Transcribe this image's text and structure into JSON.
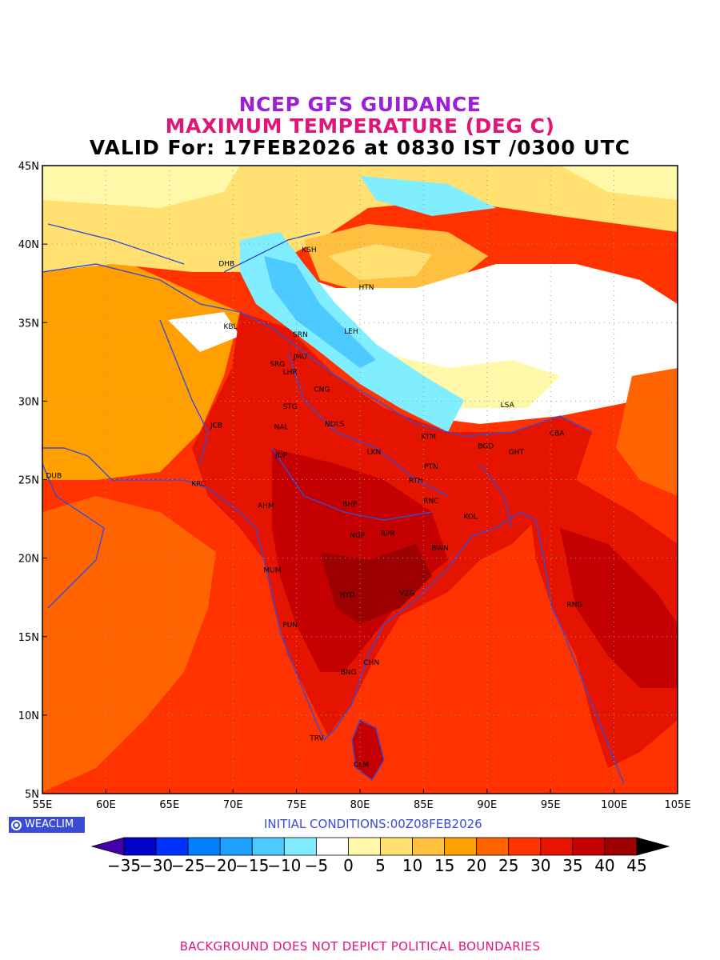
{
  "titles": {
    "line1": "NCEP GFS GUIDANCE",
    "line2": "MAXIMUM TEMPERATURE (DEG C)",
    "line3": "VALID For: 17FEB2026 at 0830 IST /0300 UTC"
  },
  "colors": {
    "line1": "#9b1fd6",
    "line2": "#e0157a",
    "border": "#3a4bd8",
    "logo_bg": "#3a4bd8",
    "init": "#3a4bd8",
    "footer": "#e0157a"
  },
  "map": {
    "lon_range": [
      55,
      105
    ],
    "lat_range": [
      5,
      45
    ],
    "lon_ticks": [
      "55E",
      "60E",
      "65E",
      "70E",
      "75E",
      "80E",
      "85E",
      "90E",
      "95E",
      "100E",
      "105E"
    ],
    "lat_ticks": [
      "5N",
      "10N",
      "15N",
      "20N",
      "25N",
      "30N",
      "35N",
      "40N",
      "45N"
    ],
    "grid": true
  },
  "cities": [
    {
      "label": "KSH",
      "lon": 76.0,
      "lat": 39.5
    },
    {
      "label": "DHB",
      "lon": 69.5,
      "lat": 38.6
    },
    {
      "label": "HTN",
      "lon": 80.5,
      "lat": 37.1
    },
    {
      "label": "KBL",
      "lon": 69.8,
      "lat": 34.6
    },
    {
      "label": "SRN",
      "lon": 75.3,
      "lat": 34.1
    },
    {
      "label": "LEH",
      "lon": 79.3,
      "lat": 34.3
    },
    {
      "label": "JMU",
      "lon": 75.3,
      "lat": 32.7
    },
    {
      "label": "SRG",
      "lon": 73.5,
      "lat": 32.2
    },
    {
      "label": "LHR",
      "lon": 74.5,
      "lat": 31.7
    },
    {
      "label": "CNG",
      "lon": 77.0,
      "lat": 30.6
    },
    {
      "label": "LSA",
      "lon": 91.6,
      "lat": 29.6
    },
    {
      "label": "STG",
      "lon": 74.5,
      "lat": 29.5
    },
    {
      "label": "JCB",
      "lon": 68.7,
      "lat": 28.3
    },
    {
      "label": "NAL",
      "lon": 73.8,
      "lat": 28.2
    },
    {
      "label": "NDLS",
      "lon": 78.0,
      "lat": 28.4
    },
    {
      "label": "KTM",
      "lon": 85.4,
      "lat": 27.6
    },
    {
      "label": "CBA",
      "lon": 95.5,
      "lat": 27.8
    },
    {
      "label": "BGD",
      "lon": 89.9,
      "lat": 27.0
    },
    {
      "label": "LKN",
      "lon": 81.1,
      "lat": 26.6
    },
    {
      "label": "GHT",
      "lon": 92.3,
      "lat": 26.6
    },
    {
      "label": "JDP",
      "lon": 73.8,
      "lat": 26.4
    },
    {
      "label": "DUB",
      "lon": 55.9,
      "lat": 25.1
    },
    {
      "label": "PTN",
      "lon": 85.6,
      "lat": 25.7
    },
    {
      "label": "KRC",
      "lon": 67.3,
      "lat": 24.6
    },
    {
      "label": "RTH",
      "lon": 84.4,
      "lat": 24.8
    },
    {
      "label": "RNC",
      "lon": 85.6,
      "lat": 23.5
    },
    {
      "label": "BHP",
      "lon": 79.2,
      "lat": 23.3
    },
    {
      "label": "AHM",
      "lon": 72.6,
      "lat": 23.2
    },
    {
      "label": "KOL",
      "lon": 88.7,
      "lat": 22.5
    },
    {
      "label": "NGP",
      "lon": 79.8,
      "lat": 21.3
    },
    {
      "label": "RPR",
      "lon": 82.2,
      "lat": 21.4
    },
    {
      "label": "BWN",
      "lon": 86.3,
      "lat": 20.5
    },
    {
      "label": "MUM",
      "lon": 73.1,
      "lat": 19.1
    },
    {
      "label": "HYD",
      "lon": 79.0,
      "lat": 17.5
    },
    {
      "label": "VZG",
      "lon": 83.7,
      "lat": 17.6
    },
    {
      "label": "RNG",
      "lon": 96.9,
      "lat": 16.9
    },
    {
      "label": "PUN",
      "lon": 74.5,
      "lat": 15.6
    },
    {
      "label": "CHN",
      "lon": 80.9,
      "lat": 13.2
    },
    {
      "label": "BNG",
      "lon": 79.1,
      "lat": 12.6
    },
    {
      "label": "TRV",
      "lon": 76.6,
      "lat": 8.4
    },
    {
      "label": "CLM",
      "lon": 80.1,
      "lat": 6.7
    }
  ],
  "colorbar": {
    "labels": [
      "−35",
      "−30",
      "−25",
      "−20",
      "−15",
      "−10",
      "−5",
      "0",
      "5",
      "10",
      "15",
      "20",
      "25",
      "30",
      "35",
      "40",
      "45"
    ],
    "low_color": "#4400aa",
    "high_color": "#000000",
    "bins": [
      "#0000c8",
      "#0032ff",
      "#0080ff",
      "#1ea0ff",
      "#4ccaff",
      "#80eeff",
      "#ffffff",
      "#fff8a8",
      "#ffe070",
      "#ffc040",
      "#ffa000",
      "#ff6400",
      "#ff3200",
      "#e41400",
      "#c40000",
      "#9c0000"
    ]
  },
  "logo": "WEACLIM",
  "initial": "INITIAL  CONDITIONS:00Z08FEB2026",
  "footer": "BACKGROUND DOES NOT DEPICT POLITICAL BOUNDARIES"
}
